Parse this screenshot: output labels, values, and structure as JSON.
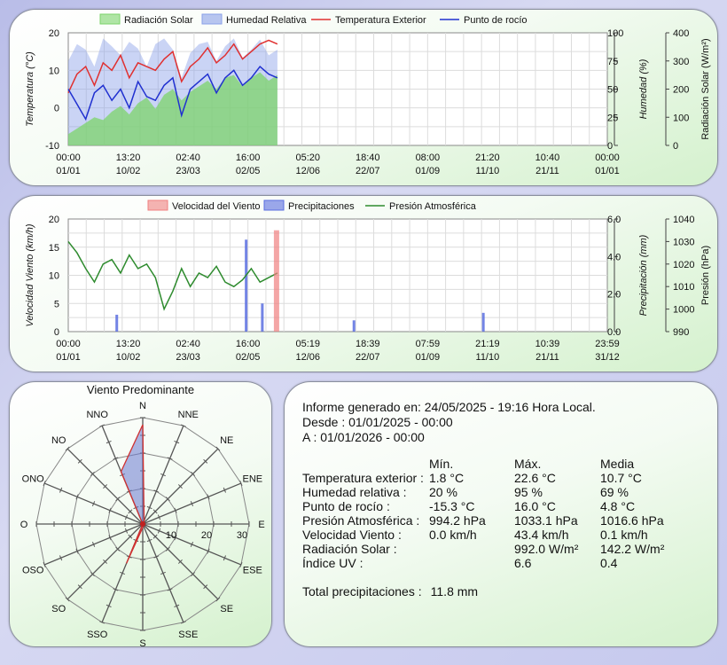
{
  "chart_data": [
    {
      "type": "line",
      "legend": [
        "Radiación Solar",
        "Humedad Relativa",
        "Temperatura Exterior",
        "Punto de rocío"
      ],
      "colors": {
        "radiacion": "#7cd46a",
        "humedad": "#8aa0e8",
        "temperatura": "#e03030",
        "rocio": "#2030d0"
      },
      "ylabel_left": "Temperatura (°C)",
      "ylabel_right1": "Humedad (%)",
      "ylabel_right2": "Radiación Solar (W/m²)",
      "y_left_ticks": [
        "20",
        "10",
        "0",
        "-10"
      ],
      "y_left_range": [
        -10,
        20
      ],
      "y_right1_ticks": [
        "100",
        "75",
        "50",
        "25",
        "0"
      ],
      "y_right2_ticks": [
        "400",
        "300",
        "200",
        "100",
        "0"
      ],
      "x_ticks": [
        {
          "time": "00:00",
          "date": "01/01"
        },
        {
          "time": "13:20",
          "date": "10/02"
        },
        {
          "time": "02:40",
          "date": "23/03"
        },
        {
          "time": "16:00",
          "date": "02/05"
        },
        {
          "time": "05:20",
          "date": "12/06"
        },
        {
          "time": "18:40",
          "date": "22/07"
        },
        {
          "time": "08:00",
          "date": "01/09"
        },
        {
          "time": "21:20",
          "date": "11/10"
        },
        {
          "time": "10:40",
          "date": "21/11"
        },
        {
          "time": "00:00",
          "date": "01/01"
        }
      ],
      "grid": true,
      "legend_position": "top",
      "series_temperatura": [
        4,
        9,
        11,
        6,
        12,
        10,
        14,
        8,
        12,
        11,
        10,
        13,
        15,
        7,
        11,
        13,
        16,
        12,
        14,
        17,
        13,
        15,
        17,
        18,
        17
      ],
      "series_rocio": [
        5,
        1,
        -3,
        4,
        6,
        2,
        5,
        0,
        7,
        3,
        2,
        6,
        8,
        -2,
        5,
        7,
        9,
        4,
        8,
        10,
        6,
        8,
        11,
        9,
        8
      ],
      "series_humedad": [
        75,
        90,
        85,
        70,
        95,
        88,
        80,
        92,
        86,
        70,
        90,
        95,
        85,
        60,
        82,
        90,
        92,
        75,
        88,
        95,
        78,
        85,
        94,
        80,
        85
      ],
      "series_radiacion": [
        40,
        60,
        80,
        100,
        90,
        120,
        140,
        110,
        150,
        170,
        130,
        180,
        200,
        160,
        190,
        210,
        230,
        200,
        240,
        250,
        210,
        240,
        260,
        230,
        250
      ]
    },
    {
      "type": "line",
      "legend": [
        "Velocidad del Viento",
        "Precipitaciones",
        "Presión Atmosférica"
      ],
      "colors": {
        "viento": "#f08080",
        "precip": "#5a6ee0",
        "presion": "#2e8b2e"
      },
      "ylabel_left": "Velocidad Viento (km/h)",
      "ylabel_right1": "Precipitación (mm)",
      "ylabel_right2": "Presión (hPa)",
      "y_left_ticks": [
        "20",
        "15",
        "10",
        "5",
        "0"
      ],
      "y_left_range": [
        0,
        20
      ],
      "y_right1_ticks": [
        "6.0",
        "4.0",
        "2.0",
        "0.0"
      ],
      "y_right2_ticks": [
        "1040",
        "1030",
        "1020",
        "1010",
        "1000",
        "990"
      ],
      "x_ticks": [
        {
          "time": "00:00",
          "date": "01/01"
        },
        {
          "time": "13:20",
          "date": "10/02"
        },
        {
          "time": "02:40",
          "date": "23/03"
        },
        {
          "time": "16:00",
          "date": "02/05"
        },
        {
          "time": "05:19",
          "date": "12/06"
        },
        {
          "time": "18:39",
          "date": "22/07"
        },
        {
          "time": "07:59",
          "date": "01/09"
        },
        {
          "time": "21:19",
          "date": "11/10"
        },
        {
          "time": "10:39",
          "date": "21/11"
        },
        {
          "time": "23:59",
          "date": "31/12"
        }
      ],
      "grid": true,
      "legend_position": "top",
      "series_presion": [
        1030,
        1025,
        1018,
        1012,
        1020,
        1022,
        1016,
        1024,
        1018,
        1020,
        1014,
        1000,
        1008,
        1018,
        1010,
        1016,
        1014,
        1019,
        1012,
        1010,
        1013,
        1018,
        1012,
        1014,
        1016
      ],
      "series_viento": [
        0,
        0,
        0,
        0,
        0,
        0,
        0,
        0,
        0,
        0,
        0,
        0,
        0,
        0,
        0,
        0,
        0,
        0,
        0,
        0,
        0,
        0,
        0,
        0,
        18
      ],
      "precip_events": [
        {
          "x": 0.09,
          "v": 0.9
        },
        {
          "x": 0.33,
          "v": 4.9
        },
        {
          "x": 0.36,
          "v": 1.5
        },
        {
          "x": 0.53,
          "v": 0.6
        },
        {
          "x": 0.77,
          "v": 1.0
        }
      ]
    },
    {
      "type": "radar",
      "title": "Viento Predominante",
      "directions": [
        "N",
        "NNE",
        "NE",
        "ENE",
        "E",
        "ESE",
        "SE",
        "SSE",
        "S",
        "SSO",
        "SO",
        "OSO",
        "O",
        "ONO",
        "NO",
        "NNO"
      ],
      "radial_ticks": [
        "10",
        "20",
        "30"
      ],
      "radial_max": 30,
      "values": [
        28,
        1,
        0,
        0,
        0,
        0,
        0,
        0,
        1,
        12,
        0,
        0,
        0,
        0,
        0,
        16
      ],
      "fill": "#6a78d0"
    }
  ],
  "report": {
    "generated": "Informe generado en: 24/05/2025 - 19:16 Hora Local.",
    "from": "Desde : 01/01/2025 - 00:00",
    "to": "A : 01/01/2026 - 00:00",
    "headers": {
      "min": "Mín.",
      "max": "Máx.",
      "avg": "Media"
    },
    "rows": [
      {
        "label": "Temperatura exterior :",
        "min": "1.8 °C",
        "max": "22.6 °C",
        "avg": "10.7 °C"
      },
      {
        "label": "Humedad relativa :",
        "min": "20 %",
        "max": "95 %",
        "avg": "69 %"
      },
      {
        "label": "Punto de rocío :",
        "min": "-15.3 °C",
        "max": "16.0 °C",
        "avg": "4.8 °C"
      },
      {
        "label": "Presión Atmosférica :",
        "min": "994.2 hPa",
        "max": "1033.1 hPa",
        "avg": "1016.6 hPa"
      },
      {
        "label": "Velocidad Viento :",
        "min": "0.0 km/h",
        "max": "43.4 km/h",
        "avg": "0.1 km/h"
      },
      {
        "label": "Radiación Solar :",
        "min": "",
        "max": "992.0 W/m²",
        "avg": "142.2 W/m²"
      },
      {
        "label": "Índice UV :",
        "min": "",
        "max": "6.6",
        "avg": "0.4"
      }
    ],
    "total_label": "Total precipitaciones :",
    "total_value": "11.8 mm"
  }
}
